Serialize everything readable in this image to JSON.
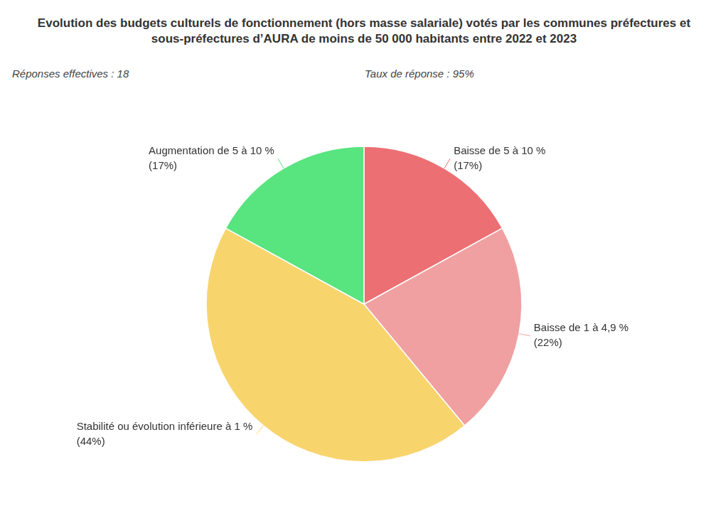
{
  "chart_data": {
    "type": "pie",
    "title": "Evolution des budgets culturels de fonctionnement (hors masse salariale) votés par les communes préfectures et sous-préfectures d’AURA de moins de 50 000 habitants entre 2022 et 2023",
    "annotations": [
      "Réponses effectives : 18",
      "Taux de réponse : 95%"
    ],
    "categories": [
      "Baisse de 5 à 10 %",
      "Baisse de 1 à 4,9 %",
      "Stabilité ou évolution inférieure à 1 %",
      "Augmentation de 5 à 10 %"
    ],
    "values": [
      17,
      22,
      44,
      17
    ],
    "value_labels": [
      "(17%)",
      "(22%)",
      "(44%)",
      "(17%)"
    ],
    "colors": [
      "#ec6f73",
      "#f0a0a1",
      "#f8d46d",
      "#58e47e"
    ],
    "data_labels": true,
    "legend": false
  }
}
